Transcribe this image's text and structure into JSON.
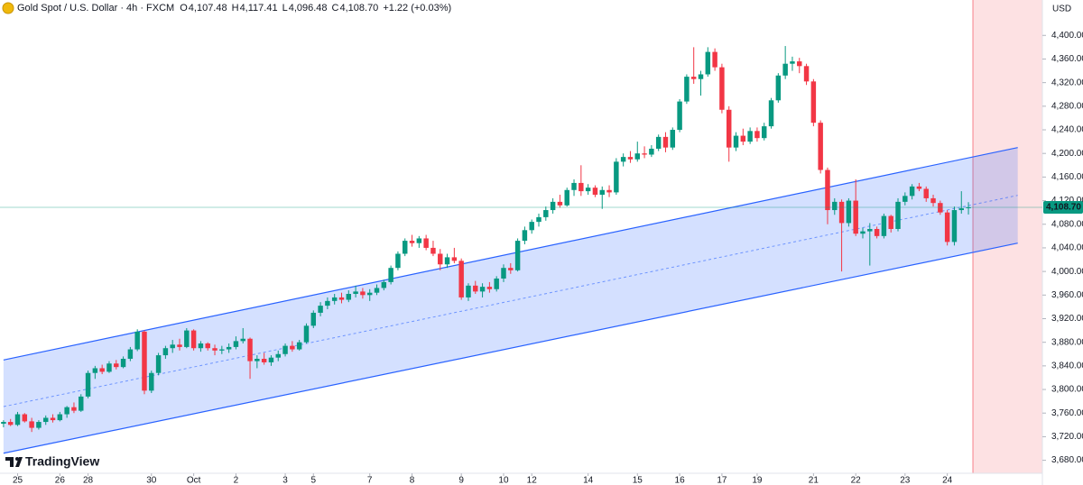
{
  "header": {
    "symbol": "Gold Spot / U.S. Dollar · 4h · FXCM",
    "ohlc": [
      {
        "label": "O",
        "value": "4,107.48"
      },
      {
        "label": "H",
        "value": "4,117.41"
      },
      {
        "label": "L",
        "value": "4,096.48"
      },
      {
        "label": "C",
        "value": "4,108.70"
      }
    ],
    "change": "+1.22 (+0.03%)"
  },
  "logo": "TradingView",
  "chart_data": {
    "type": "candlestick",
    "currency": "USD",
    "up_color": "#089981",
    "down_color": "#f23645",
    "xlim": [
      -0.5,
      147.5
    ],
    "ylim": [
      3658,
      4460
    ],
    "grid": false,
    "xticks": [
      {
        "value": 2,
        "label": "25"
      },
      {
        "value": 8,
        "label": "26"
      },
      {
        "value": 12,
        "label": "28"
      },
      {
        "value": 21,
        "label": "30"
      },
      {
        "value": 27,
        "label": "Oct"
      },
      {
        "value": 33,
        "label": "2"
      },
      {
        "value": 40,
        "label": "3"
      },
      {
        "value": 44,
        "label": "5"
      },
      {
        "value": 52,
        "label": "7"
      },
      {
        "value": 58,
        "label": "8"
      },
      {
        "value": 65,
        "label": "9"
      },
      {
        "value": 71,
        "label": "10"
      },
      {
        "value": 75,
        "label": "12"
      },
      {
        "value": 83,
        "label": "14"
      },
      {
        "value": 90,
        "label": "15"
      },
      {
        "value": 96,
        "label": "16"
      },
      {
        "value": 102,
        "label": "17"
      },
      {
        "value": 107,
        "label": "19"
      },
      {
        "value": 115,
        "label": "21"
      },
      {
        "value": 121,
        "label": "22"
      },
      {
        "value": 128,
        "label": "23"
      },
      {
        "value": 134,
        "label": "24"
      }
    ],
    "yticks": [
      {
        "value": 3680,
        "label": "3,680.00"
      },
      {
        "value": 3720,
        "label": "3,720.00"
      },
      {
        "value": 3760,
        "label": "3,760.00"
      },
      {
        "value": 3800,
        "label": "3,800.00"
      },
      {
        "value": 3840,
        "label": "3,840.00"
      },
      {
        "value": 3880,
        "label": "3,880.00"
      },
      {
        "value": 3920,
        "label": "3,920.00"
      },
      {
        "value": 3960,
        "label": "3,960.00"
      },
      {
        "value": 4000,
        "label": "4,000.00"
      },
      {
        "value": 4040,
        "label": "4,040.00"
      },
      {
        "value": 4080,
        "label": "4,080.00"
      },
      {
        "value": 4120,
        "label": "4,120.00"
      },
      {
        "value": 4160,
        "label": "4,160.00"
      },
      {
        "value": 4200,
        "label": "4,200.00"
      },
      {
        "value": 4240,
        "label": "4,240.00"
      },
      {
        "value": 4280,
        "label": "4,280.00"
      },
      {
        "value": 4320,
        "label": "4,320.00"
      },
      {
        "value": 4360,
        "label": "4,360.00"
      },
      {
        "value": 4400,
        "label": "4,400.00"
      }
    ],
    "last_price": {
      "value": 4108.7,
      "label": "4,108.70"
    },
    "channel": {
      "x": [
        0,
        144
      ],
      "upper": [
        3850,
        4210
      ],
      "lower": [
        3692,
        4048
      ],
      "color": "#2962ff"
    },
    "candles": [
      [
        3742,
        3748,
        3736,
        3745
      ],
      [
        3745,
        3750,
        3738,
        3740
      ],
      [
        3740,
        3762,
        3738,
        3758
      ],
      [
        3758,
        3760,
        3744,
        3746
      ],
      [
        3746,
        3752,
        3728,
        3735
      ],
      [
        3735,
        3748,
        3732,
        3745
      ],
      [
        3745,
        3756,
        3740,
        3752
      ],
      [
        3752,
        3758,
        3744,
        3748
      ],
      [
        3748,
        3762,
        3746,
        3758
      ],
      [
        3758,
        3772,
        3752,
        3770
      ],
      [
        3770,
        3778,
        3760,
        3764
      ],
      [
        3764,
        3792,
        3762,
        3788
      ],
      [
        3788,
        3832,
        3785,
        3828
      ],
      [
        3828,
        3840,
        3818,
        3836
      ],
      [
        3836,
        3842,
        3826,
        3830
      ],
      [
        3830,
        3848,
        3828,
        3844
      ],
      [
        3844,
        3850,
        3834,
        3838
      ],
      [
        3838,
        3856,
        3836,
        3852
      ],
      [
        3852,
        3872,
        3848,
        3868
      ],
      [
        3868,
        3902,
        3865,
        3898
      ],
      [
        3898,
        3900,
        3792,
        3798
      ],
      [
        3798,
        3832,
        3794,
        3828
      ],
      [
        3828,
        3862,
        3824,
        3858
      ],
      [
        3858,
        3874,
        3852,
        3870
      ],
      [
        3870,
        3884,
        3862,
        3876
      ],
      [
        3876,
        3886,
        3866,
        3872
      ],
      [
        3872,
        3904,
        3870,
        3900
      ],
      [
        3900,
        3902,
        3866,
        3870
      ],
      [
        3870,
        3882,
        3864,
        3878
      ],
      [
        3878,
        3880,
        3866,
        3870
      ],
      [
        3870,
        3876,
        3858,
        3866
      ],
      [
        3866,
        3874,
        3860,
        3868
      ],
      [
        3868,
        3878,
        3862,
        3872
      ],
      [
        3872,
        3890,
        3868,
        3882
      ],
      [
        3882,
        3904,
        3878,
        3886
      ],
      [
        3886,
        3888,
        3818,
        3848
      ],
      [
        3848,
        3858,
        3836,
        3852
      ],
      [
        3852,
        3862,
        3842,
        3846
      ],
      [
        3846,
        3858,
        3840,
        3854
      ],
      [
        3854,
        3866,
        3848,
        3860
      ],
      [
        3860,
        3878,
        3856,
        3874
      ],
      [
        3874,
        3882,
        3864,
        3868
      ],
      [
        3868,
        3884,
        3866,
        3880
      ],
      [
        3880,
        3912,
        3878,
        3908
      ],
      [
        3908,
        3934,
        3904,
        3930
      ],
      [
        3930,
        3948,
        3924,
        3942
      ],
      [
        3942,
        3956,
        3936,
        3950
      ],
      [
        3950,
        3962,
        3944,
        3956
      ],
      [
        3956,
        3964,
        3946,
        3952
      ],
      [
        3952,
        3968,
        3948,
        3962
      ],
      [
        3962,
        3976,
        3956,
        3966
      ],
      [
        3966,
        3972,
        3954,
        3960
      ],
      [
        3960,
        3970,
        3950,
        3964
      ],
      [
        3964,
        3978,
        3960,
        3972
      ],
      [
        3972,
        3986,
        3968,
        3982
      ],
      [
        3982,
        4010,
        3978,
        4006
      ],
      [
        4006,
        4034,
        4002,
        4030
      ],
      [
        4030,
        4056,
        4026,
        4052
      ],
      [
        4052,
        4062,
        4042,
        4048
      ],
      [
        4048,
        4060,
        4040,
        4056
      ],
      [
        4056,
        4062,
        4036,
        4040
      ],
      [
        4040,
        4052,
        4026,
        4030
      ],
      [
        4030,
        4038,
        4002,
        4012
      ],
      [
        4012,
        4030,
        4006,
        4024
      ],
      [
        4024,
        4040,
        4014,
        4018
      ],
      [
        4018,
        4022,
        3952,
        3956
      ],
      [
        3956,
        3980,
        3950,
        3976
      ],
      [
        3976,
        3984,
        3962,
        3966
      ],
      [
        3966,
        3980,
        3956,
        3974
      ],
      [
        3974,
        3982,
        3964,
        3970
      ],
      [
        3970,
        3992,
        3966,
        3988
      ],
      [
        3988,
        4012,
        3982,
        4006
      ],
      [
        4006,
        4014,
        3996,
        4002
      ],
      [
        4002,
        4056,
        4000,
        4052
      ],
      [
        4052,
        4076,
        4046,
        4070
      ],
      [
        4070,
        4088,
        4064,
        4084
      ],
      [
        4084,
        4098,
        4076,
        4092
      ],
      [
        4092,
        4110,
        4086,
        4104
      ],
      [
        4104,
        4124,
        4098,
        4118
      ],
      [
        4118,
        4130,
        4108,
        4112
      ],
      [
        4112,
        4142,
        4110,
        4138
      ],
      [
        4138,
        4156,
        4128,
        4150
      ],
      [
        4150,
        4180,
        4128,
        4136
      ],
      [
        4136,
        4148,
        4130,
        4142
      ],
      [
        4142,
        4146,
        4126,
        4130
      ],
      [
        4130,
        4144,
        4106,
        4138
      ],
      [
        4138,
        4146,
        4126,
        4134
      ],
      [
        4134,
        4192,
        4130,
        4186
      ],
      [
        4186,
        4200,
        4178,
        4194
      ],
      [
        4194,
        4204,
        4184,
        4190
      ],
      [
        4190,
        4220,
        4186,
        4200
      ],
      [
        4200,
        4212,
        4192,
        4198
      ],
      [
        4198,
        4214,
        4194,
        4208
      ],
      [
        4208,
        4232,
        4204,
        4228
      ],
      [
        4228,
        4236,
        4202,
        4210
      ],
      [
        4210,
        4244,
        4206,
        4240
      ],
      [
        4240,
        4292,
        4236,
        4288
      ],
      [
        4288,
        4334,
        4284,
        4330
      ],
      [
        4330,
        4380,
        4318,
        4326
      ],
      [
        4326,
        4340,
        4298,
        4334
      ],
      [
        4334,
        4380,
        4330,
        4372
      ],
      [
        4372,
        4378,
        4340,
        4346
      ],
      [
        4346,
        4352,
        4268,
        4274
      ],
      [
        4274,
        4280,
        4186,
        4210
      ],
      [
        4210,
        4236,
        4204,
        4230
      ],
      [
        4230,
        4242,
        4214,
        4220
      ],
      [
        4220,
        4244,
        4216,
        4238
      ],
      [
        4238,
        4244,
        4220,
        4226
      ],
      [
        4226,
        4252,
        4222,
        4246
      ],
      [
        4246,
        4294,
        4242,
        4290
      ],
      [
        4290,
        4336,
        4286,
        4332
      ],
      [
        4332,
        4382,
        4326,
        4352
      ],
      [
        4352,
        4364,
        4340,
        4356
      ],
      [
        4356,
        4362,
        4336,
        4348
      ],
      [
        4348,
        4352,
        4316,
        4322
      ],
      [
        4322,
        4326,
        4246,
        4252
      ],
      [
        4252,
        4256,
        4166,
        4172
      ],
      [
        4172,
        4176,
        4080,
        4104
      ],
      [
        4104,
        4124,
        4096,
        4118
      ],
      [
        4118,
        4122,
        4000,
        4082
      ],
      [
        4082,
        4124,
        4076,
        4120
      ],
      [
        4120,
        4156,
        4060,
        4064
      ],
      [
        4064,
        4074,
        4056,
        4068
      ],
      [
        4068,
        4082,
        4010,
        4072
      ],
      [
        4072,
        4076,
        4056,
        4060
      ],
      [
        4060,
        4098,
        4056,
        4094
      ],
      [
        4094,
        4096,
        4066,
        4072
      ],
      [
        4072,
        4124,
        4068,
        4118
      ],
      [
        4118,
        4134,
        4112,
        4128
      ],
      [
        4128,
        4148,
        4122,
        4144
      ],
      [
        4144,
        4150,
        4136,
        4140
      ],
      [
        4140,
        4144,
        4118,
        4124
      ],
      [
        4124,
        4130,
        4110,
        4116
      ],
      [
        4116,
        4120,
        4096,
        4100
      ],
      [
        4100,
        4104,
        4044,
        4050
      ],
      [
        4050,
        4110,
        4044,
        4104
      ],
      [
        4104,
        4136,
        4098,
        4107
      ],
      [
        4107.48,
        4117.41,
        4096.48,
        4108.7
      ]
    ]
  }
}
